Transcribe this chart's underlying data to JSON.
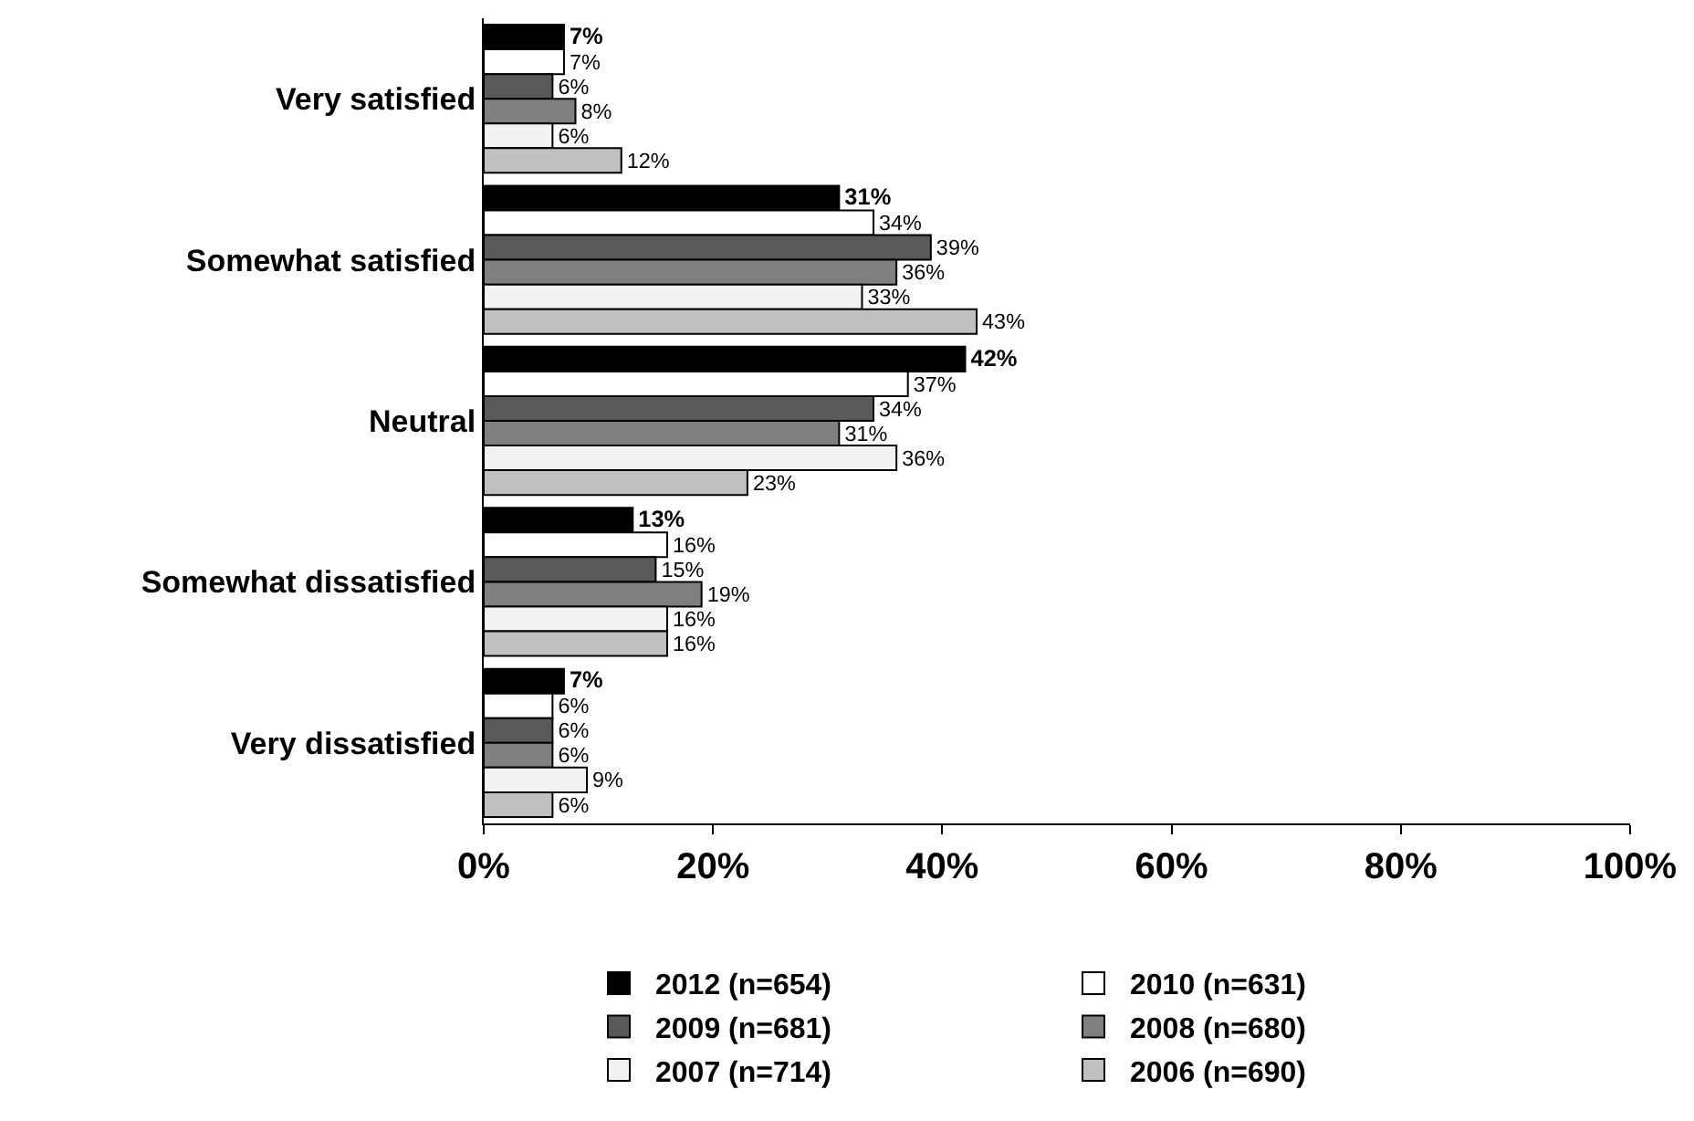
{
  "chart_data": {
    "type": "bar",
    "orientation": "horizontal",
    "categories": [
      "Very satisfied",
      "Somewhat satisfied",
      "Neutral",
      "Somewhat dissatisfied",
      "Very dissatisfied"
    ],
    "series": [
      {
        "name": "2012 (n=654)",
        "color": "#000000",
        "values": [
          7,
          31,
          42,
          13,
          7
        ],
        "value_labels": [
          "7%",
          "31%",
          "42%",
          "13%",
          "7%"
        ]
      },
      {
        "name": "2010 (n=631)",
        "color": "#ffffff",
        "values": [
          7,
          34,
          37,
          16,
          6
        ],
        "value_labels": [
          "7%",
          "34%",
          "37%",
          "16%",
          "6%"
        ]
      },
      {
        "name": "2009 (n=681)",
        "color": "#595959",
        "values": [
          6,
          39,
          34,
          15,
          6
        ],
        "value_labels": [
          "6%",
          "39%",
          "34%",
          "15%",
          "6%"
        ]
      },
      {
        "name": "2008 (n=680)",
        "color": "#808080",
        "values": [
          8,
          36,
          31,
          19,
          6
        ],
        "value_labels": [
          "8%",
          "36%",
          "31%",
          "19%",
          "6%"
        ]
      },
      {
        "name": "2007 (n=714)",
        "color": "#f2f2f2",
        "values": [
          6,
          33,
          36,
          16,
          9
        ],
        "value_labels": [
          "6%",
          "33%",
          "36%",
          "16%",
          "9%"
        ]
      },
      {
        "name": "2006 (n=690)",
        "color": "#c0c0c0",
        "values": [
          12,
          43,
          23,
          16,
          6
        ],
        "value_labels": [
          "12%",
          "43%",
          "23%",
          "16%",
          "6%"
        ]
      }
    ],
    "xlim": [
      0,
      100
    ],
    "xticks": [
      {
        "value": 0,
        "label": "0%"
      },
      {
        "value": 20,
        "label": "20%"
      },
      {
        "value": 40,
        "label": "40%"
      },
      {
        "value": 60,
        "label": "60%"
      },
      {
        "value": 80,
        "label": "80%"
      },
      {
        "value": 100,
        "label": "100%"
      }
    ],
    "legend": "bottom"
  }
}
